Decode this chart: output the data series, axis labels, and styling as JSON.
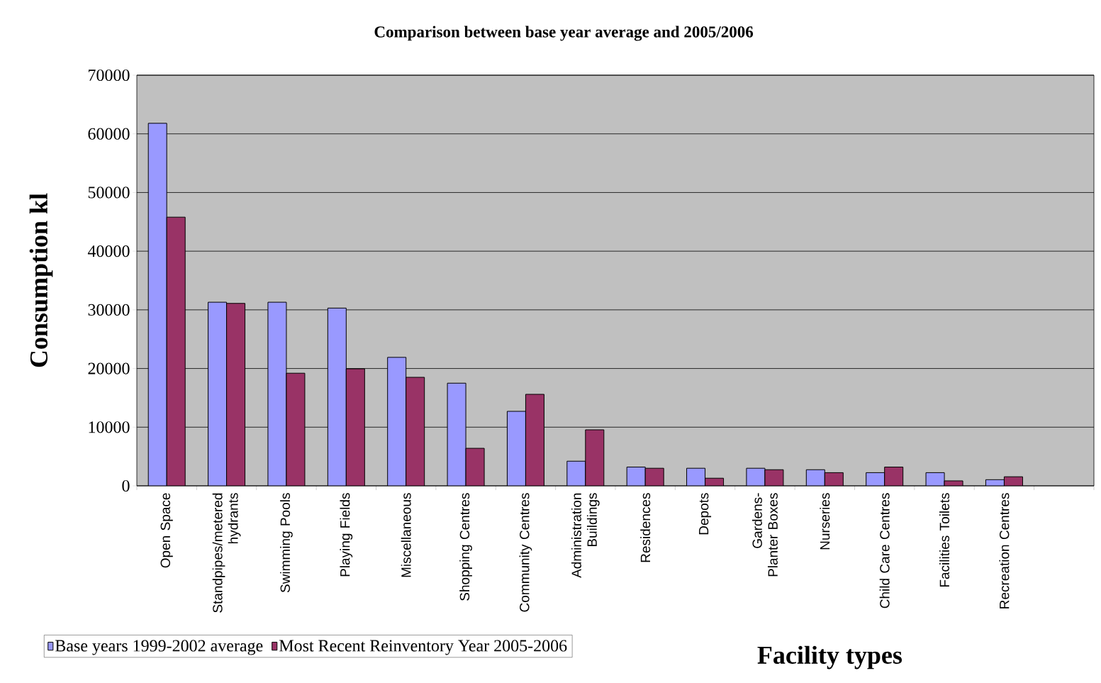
{
  "chart_data": {
    "type": "bar",
    "title": "Comparison between base year average and 2005/2006",
    "xlabel": "Facility types",
    "ylabel": "Consumption kl",
    "categories": [
      "Open Space",
      "Standpipes/metered hydrants",
      "Swimming Pools",
      "Playing Fields",
      "Miscellaneous",
      "Shopping Centres",
      "Community Centres",
      "Administration Buildings",
      "Residences",
      "Depots",
      "Gardens-Planter Boxes",
      "Nurseries",
      "Child Care Centres",
      "Facilities Toilets",
      "Recreation Centres",
      null
    ],
    "series": [
      {
        "name": "Base years 1999-2002 average",
        "color": "#9999ff",
        "values": [
          61800,
          31300,
          31300,
          30300,
          21900,
          17500,
          12700,
          4200,
          3200,
          3000,
          3000,
          2750,
          2250,
          2250,
          1050,
          null
        ]
      },
      {
        "name": "Most Recent Reinventory Year 2005-2006",
        "color": "#993366",
        "values": [
          45800,
          31100,
          19200,
          19950,
          18500,
          6400,
          15600,
          9550,
          3000,
          1300,
          2750,
          2250,
          3200,
          850,
          1550,
          null
        ]
      }
    ],
    "ylim": [
      0,
      70000
    ],
    "yticks": [
      0,
      10000,
      20000,
      30000,
      40000,
      50000,
      60000,
      70000
    ],
    "grid": "y",
    "legend": "bottom left"
  }
}
